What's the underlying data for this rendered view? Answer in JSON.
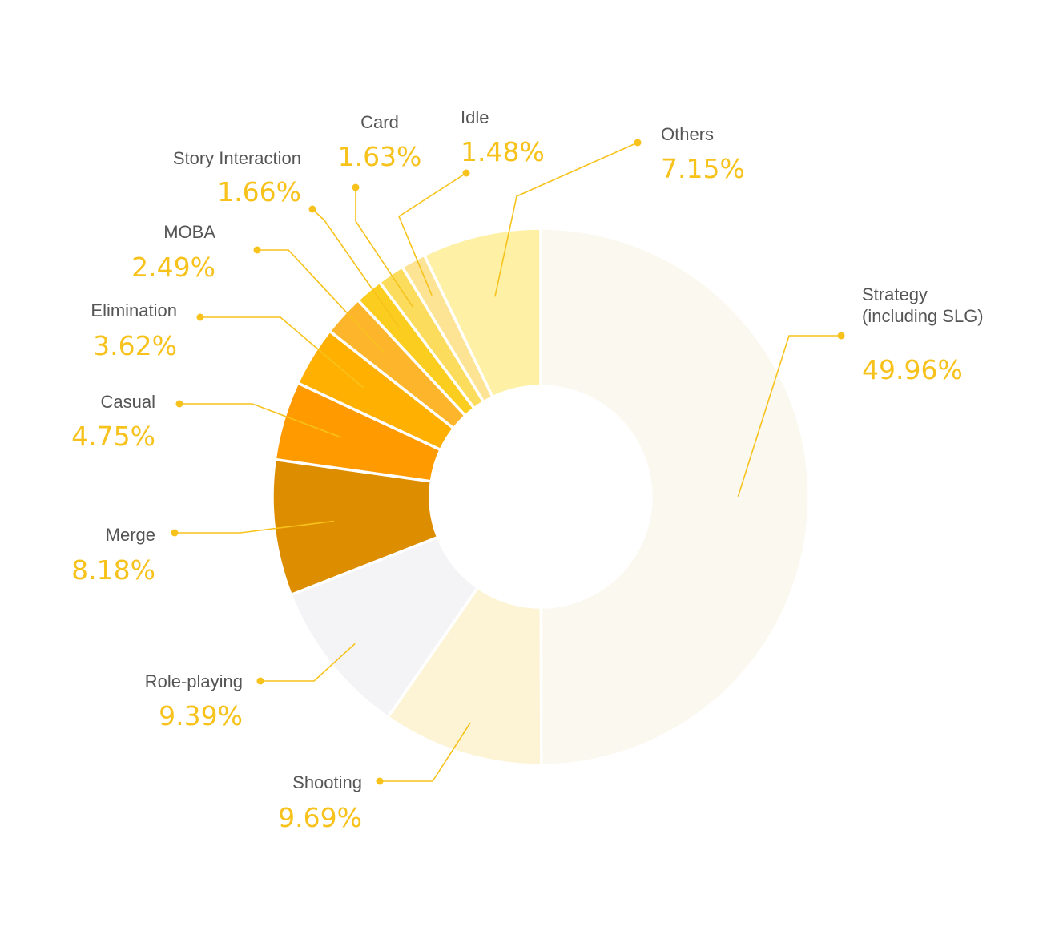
{
  "chart_data": {
    "type": "pie",
    "subtype": "donut",
    "slices": [
      {
        "label": [
          "Strategy",
          "(including SLG)"
        ],
        "value": 49.96,
        "display": "49.96%",
        "color": "#faf8ef"
      },
      {
        "label": [
          "Shooting"
        ],
        "value": 9.69,
        "display": "9.69%",
        "color": "#fdf4d6"
      },
      {
        "label": [
          "Role-playing"
        ],
        "value": 9.39,
        "display": "9.39%",
        "color": "#f4f4f6"
      },
      {
        "label": [
          "Merge"
        ],
        "value": 8.18,
        "display": "8.18%",
        "color": "#dd8e00"
      },
      {
        "label": [
          "Casual"
        ],
        "value": 4.75,
        "display": "4.75%",
        "color": "#ff9a00"
      },
      {
        "label": [
          "Elimination"
        ],
        "value": 3.62,
        "display": "3.62%",
        "color": "#ffb000"
      },
      {
        "label": [
          "MOBA"
        ],
        "value": 2.49,
        "display": "2.49%",
        "color": "#fdb62c"
      },
      {
        "label": [
          "Story Interaction"
        ],
        "value": 1.66,
        "display": "1.66%",
        "color": "#fbcd1f"
      },
      {
        "label": [
          "Card"
        ],
        "value": 1.63,
        "display": "1.63%",
        "color": "#fcdc5c"
      },
      {
        "label": [
          "Idle"
        ],
        "value": 1.48,
        "display": "1.48%",
        "color": "#fde494"
      },
      {
        "label": [
          "Others"
        ],
        "value": 7.15,
        "display": "7.15%",
        "color": "#fef0a4"
      }
    ],
    "label_color": "#555555",
    "value_color": "#f7c21b",
    "leader_color": "#f7c21b"
  }
}
